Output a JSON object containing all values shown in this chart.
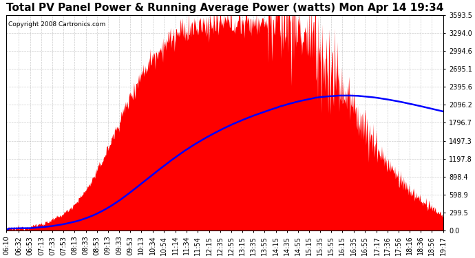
{
  "title": "Total PV Panel Power & Running Average Power (watts) Mon Apr 14 19:34",
  "copyright": "Copyright 2008 Cartronics.com",
  "bg_color": "#ffffff",
  "plot_bg_color": "#ffffff",
  "grid_color": "#aaaaaa",
  "fill_color": "#ff0000",
  "line_color": "#0000ff",
  "ymin": 0.0,
  "ymax": 3593.5,
  "yticks": [
    0.0,
    299.5,
    598.9,
    898.4,
    1197.8,
    1497.3,
    1796.7,
    2096.2,
    2395.6,
    2695.1,
    2994.6,
    3294.0,
    3593.5
  ],
  "ytick_labels": [
    "0.0",
    "299.5",
    "598.9",
    "898.4",
    "1197.8",
    "1497.3",
    "1796.7",
    "2096.2",
    "2395.6",
    "2695.1",
    "2994.6",
    "3294.0",
    "3593.5"
  ],
  "xtick_labels": [
    "06:10",
    "06:32",
    "06:53",
    "07:13",
    "07:33",
    "07:53",
    "08:13",
    "08:33",
    "08:53",
    "09:13",
    "09:33",
    "09:53",
    "10:13",
    "10:34",
    "10:54",
    "11:14",
    "11:34",
    "11:54",
    "12:15",
    "12:35",
    "12:55",
    "13:15",
    "13:35",
    "13:55",
    "14:15",
    "14:35",
    "14:55",
    "15:15",
    "15:35",
    "15:55",
    "16:15",
    "16:35",
    "16:55",
    "17:17",
    "17:36",
    "17:56",
    "18:16",
    "18:36",
    "18:56",
    "19:17"
  ],
  "title_fontsize": 11,
  "copyright_fontsize": 6.5,
  "tick_fontsize": 7
}
